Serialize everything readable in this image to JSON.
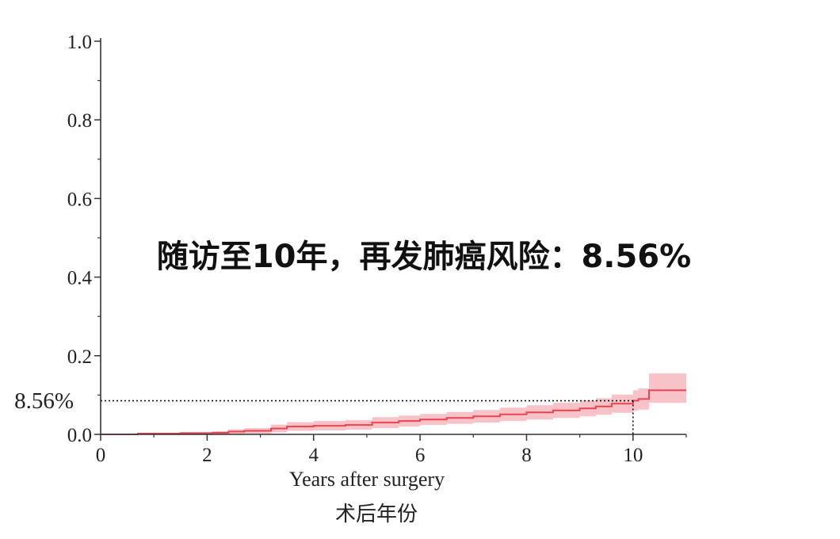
{
  "chart_data": {
    "type": "line",
    "step": true,
    "annotation": "随访至10年，再发肺癌风险：8.56%",
    "xlabel": "Years after surgery",
    "xlabel_cn": "术后年份",
    "xlim": [
      0,
      11
    ],
    "ylim": [
      0,
      1
    ],
    "xticks": [
      0,
      2,
      4,
      6,
      8,
      10
    ],
    "xtick_labels": [
      "0",
      "2",
      "4",
      "6",
      "8",
      "10"
    ],
    "xminor_ticks": [
      1,
      3,
      5,
      7,
      9,
      11
    ],
    "yticks": [
      0,
      0.2,
      0.4,
      0.6,
      0.8,
      1.0
    ],
    "ytick_labels": [
      "0.0",
      "0.2",
      "0.4",
      "0.6",
      "0.8",
      "1.0"
    ],
    "yminor_ticks": [
      0.1,
      0.3,
      0.5,
      0.7,
      0.9
    ],
    "grid": false,
    "series": [
      {
        "color": "#e8464f",
        "band_color": "#f7b9be",
        "x": [
          0,
          0.7,
          1.5,
          2.1,
          2.4,
          2.7,
          3.2,
          3.5,
          4.0,
          4.6,
          5.1,
          5.6,
          6.0,
          6.5,
          7.0,
          7.5,
          8.0,
          8.5,
          9.0,
          9.3,
          9.6,
          10.0,
          10.1,
          10.3,
          11.0
        ],
        "y": [
          0,
          0.002,
          0.003,
          0.004,
          0.007,
          0.009,
          0.015,
          0.02,
          0.022,
          0.024,
          0.03,
          0.034,
          0.038,
          0.042,
          0.046,
          0.051,
          0.056,
          0.061,
          0.066,
          0.071,
          0.078,
          0.0856,
          0.09,
          0.112,
          0.112
        ],
        "lower": [
          0,
          0,
          0,
          0,
          0.001,
          0.002,
          0.005,
          0.009,
          0.01,
          0.012,
          0.016,
          0.02,
          0.024,
          0.027,
          0.03,
          0.034,
          0.038,
          0.042,
          0.046,
          0.05,
          0.055,
          0.06,
          0.063,
          0.08,
          0.08
        ],
        "upper": [
          0,
          0.004,
          0.006,
          0.008,
          0.013,
          0.016,
          0.025,
          0.031,
          0.034,
          0.036,
          0.044,
          0.048,
          0.052,
          0.057,
          0.062,
          0.068,
          0.074,
          0.08,
          0.086,
          0.092,
          0.101,
          0.112,
          0.117,
          0.155,
          0.155
        ]
      }
    ],
    "reference": {
      "x": 10,
      "y": 0.0856,
      "label": "8.56%",
      "color": "#111111"
    }
  }
}
